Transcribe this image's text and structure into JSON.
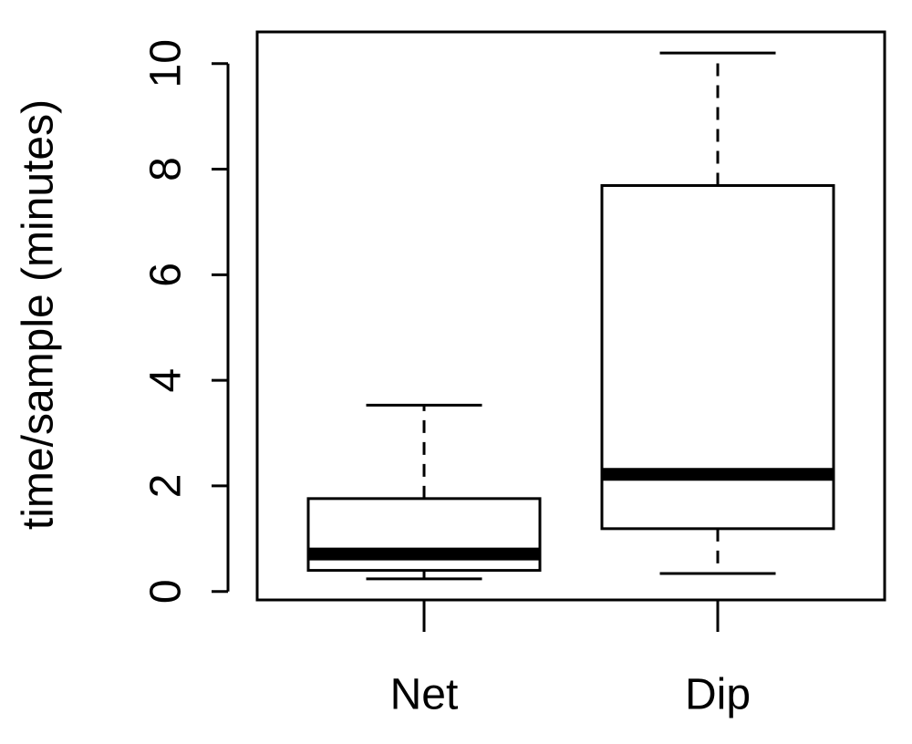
{
  "chart_data": {
    "type": "box",
    "y_label": "time/sample (minutes)",
    "categories": [
      "Net",
      "Dip"
    ],
    "boxes": [
      {
        "min": 0.24,
        "q1": 0.4,
        "median": 0.71,
        "q3": 1.76,
        "max": 3.53
      },
      {
        "min": 0.34,
        "q1": 1.19,
        "median": 2.22,
        "q3": 7.69,
        "max": 10.2
      }
    ],
    "color": "#000000",
    "ylim": [
      -0.16,
      10.6
    ],
    "yticks": [
      0,
      2,
      4,
      6,
      8,
      10
    ]
  }
}
